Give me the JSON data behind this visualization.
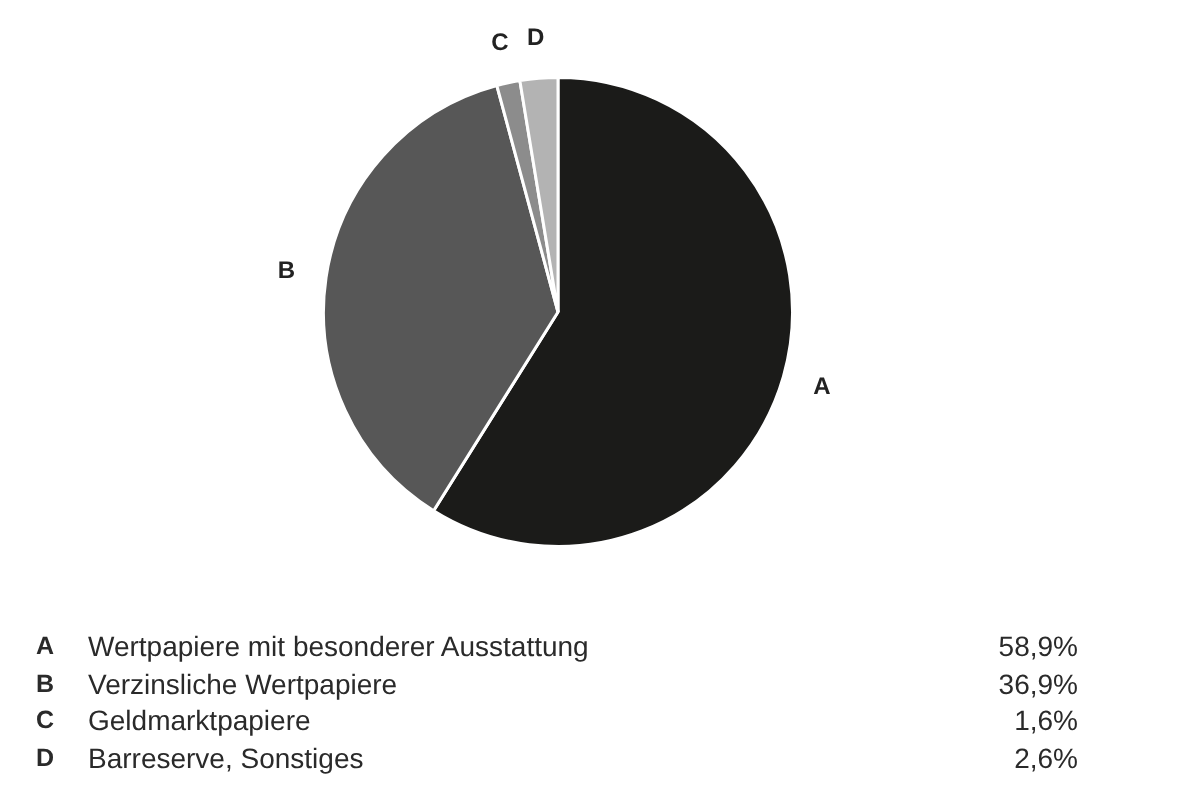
{
  "chart_data": {
    "type": "pie",
    "categories": [
      "A",
      "B",
      "C",
      "D"
    ],
    "values": [
      58.9,
      36.9,
      1.6,
      2.6
    ],
    "colors": [
      "#1b1b19",
      "#575757",
      "#8c8c8c",
      "#b3b3b3"
    ],
    "annotations": [
      "Wertpapiere mit besonderer Ausstattung",
      "58,9%",
      "Verzinsliche Wertpapiere",
      "36,9%",
      "Geldmarktpapiere",
      "1,6%",
      "Barreserve, Sonstiges",
      "2,6%"
    ]
  }
}
